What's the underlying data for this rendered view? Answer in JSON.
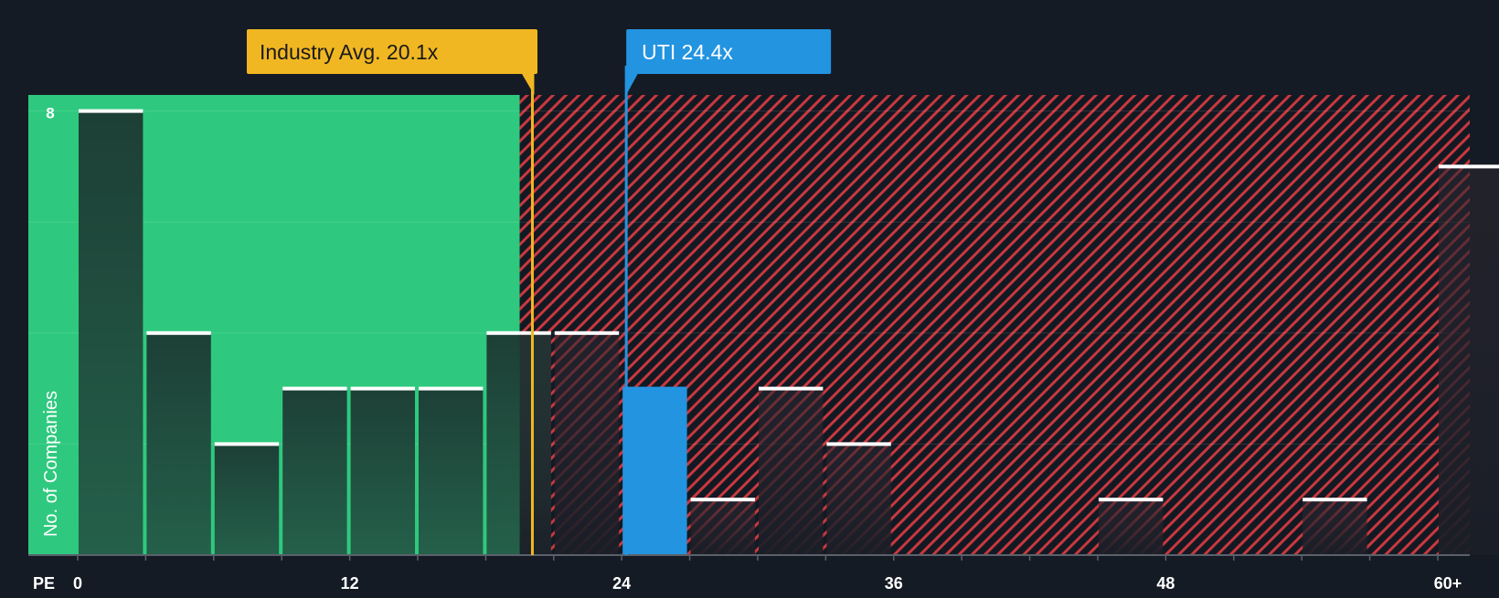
{
  "chart_data": {
    "type": "bar",
    "title": "",
    "xlabel": "PE",
    "ylabel": "No. of Companies",
    "x_ticks": [
      "0",
      "12",
      "24",
      "36",
      "48",
      "60+"
    ],
    "x_tick_values": [
      0,
      12,
      24,
      36,
      48,
      60
    ],
    "y_tick_label": "8",
    "y_tick_value": 8,
    "xlim": [
      0,
      61.5
    ],
    "ylim": [
      0,
      8.3
    ],
    "bin_width": 3,
    "bins": [
      {
        "start": 0,
        "value": 8
      },
      {
        "start": 3,
        "value": 4
      },
      {
        "start": 6,
        "value": 2
      },
      {
        "start": 9,
        "value": 3
      },
      {
        "start": 12,
        "value": 3
      },
      {
        "start": 15,
        "value": 3
      },
      {
        "start": 18,
        "value": 4
      },
      {
        "start": 21,
        "value": 4
      },
      {
        "start": 24,
        "value": 3,
        "highlight": true
      },
      {
        "start": 27,
        "value": 1
      },
      {
        "start": 30,
        "value": 3
      },
      {
        "start": 33,
        "value": 2
      },
      {
        "start": 45,
        "value": 1
      },
      {
        "start": 54,
        "value": 1
      },
      {
        "start": 60,
        "value": 7
      }
    ],
    "fair_zone_end": 19.5,
    "industry_avg": {
      "label": "Industry Avg. 20.1x",
      "value": 20.1
    },
    "company": {
      "label": "UTI 24.4x",
      "value": 24.4
    },
    "colors": {
      "background": "#151b24",
      "green_zone": "#2ec97e",
      "red_zone": "#c9383f",
      "bar_in_green": "#1f4a3d",
      "bar_in_red": "#2b2730",
      "highlight": "#2394e0",
      "industry": "#f0b722",
      "bar_cap": "#ffffff",
      "axis_text": "#ffffff"
    }
  }
}
